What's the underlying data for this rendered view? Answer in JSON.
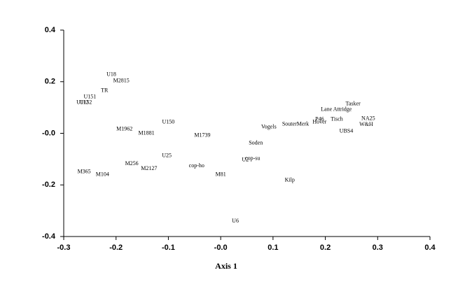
{
  "chart_data": {
    "type": "scatter",
    "x_label": "Axis 1",
    "xlim": [
      -0.3,
      0.4
    ],
    "ylim": [
      -0.4,
      0.4
    ],
    "xticks": [
      -0.3,
      -0.2,
      -0.1,
      {
        "value": 0,
        "label": "-0.0"
      },
      0.1,
      0.2,
      0.3,
      0.4
    ],
    "yticks": [
      -0.4,
      -0.2,
      {
        "value": 0,
        "label": "-0.0"
      },
      0.2,
      0.4
    ],
    "color": "#000000",
    "labels": [
      "U18",
      "M2815",
      "TR",
      "U151",
      "U152",
      "U112",
      "U150",
      "M1962",
      "M1881",
      "M1739",
      "U25",
      "M256",
      "M2127",
      "M365",
      "M104",
      "cop-ho",
      "M81",
      "U2",
      "cop-su",
      "Soden",
      "Vogels",
      "SouterMerk",
      "Kilp",
      "U6",
      "Lane Attridge",
      "Tasker",
      "Tisch",
      "Hover",
      "P46",
      "UBS4",
      "NA25",
      "W&H"
    ],
    "x": [
      -0.209,
      -0.19,
      -0.222,
      -0.25,
      -0.258,
      -0.264,
      -0.1,
      -0.184,
      -0.142,
      -0.035,
      -0.103,
      -0.17,
      -0.137,
      -0.261,
      -0.226,
      -0.046,
      0.0,
      0.047,
      0.061,
      0.067,
      0.092,
      0.143,
      0.132,
      0.028,
      0.221,
      0.253,
      0.222,
      0.189,
      0.189,
      0.24,
      0.282,
      0.278
    ],
    "y": [
      0.228,
      0.203,
      0.165,
      0.141,
      0.119,
      0.119,
      0.043,
      0.016,
      0.0,
      -0.008,
      -0.087,
      -0.119,
      -0.138,
      -0.149,
      -0.16,
      -0.127,
      -0.16,
      -0.103,
      -0.098,
      -0.038,
      0.024,
      0.035,
      -0.182,
      -0.341,
      0.092,
      0.114,
      0.054,
      0.043,
      0.054,
      0.008,
      0.057,
      0.033
    ]
  }
}
